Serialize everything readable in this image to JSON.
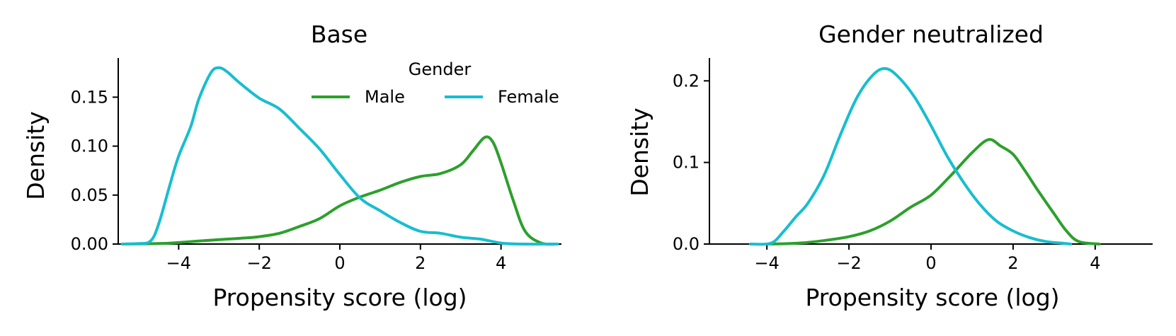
{
  "chart_data": [
    {
      "type": "line",
      "title": "Base",
      "xlabel": "Propensity score (log)",
      "ylabel": "Density",
      "xlim": [
        -5.5,
        5.5
      ],
      "ylim": [
        0,
        0.19
      ],
      "xticks": [
        -4,
        -2,
        0,
        2,
        4
      ],
      "xtick_labels": [
        "−4",
        "−2",
        "0",
        "2",
        "4"
      ],
      "yticks": [
        0,
        0.05,
        0.1,
        0.15
      ],
      "ytick_labels": [
        "0.00",
        "0.05",
        "0.10",
        "0.15"
      ],
      "legend": {
        "title": "Gender",
        "placement": "top-right",
        "entries": [
          "Male",
          "Female"
        ]
      },
      "series": [
        {
          "name": "Male",
          "color": "#2ca02c",
          "x": [
            -5.4,
            -4.5,
            -4,
            -3.5,
            -3,
            -2.5,
            -2,
            -1.5,
            -1,
            -0.5,
            0,
            0.5,
            1,
            1.5,
            2,
            2.5,
            3,
            3.3,
            3.6,
            3.8,
            4,
            4.3,
            4.6,
            5,
            5.4
          ],
          "y": [
            0,
            0.0005,
            0.0015,
            0.003,
            0.0045,
            0.0058,
            0.0075,
            0.011,
            0.018,
            0.026,
            0.039,
            0.048,
            0.055,
            0.063,
            0.069,
            0.072,
            0.081,
            0.095,
            0.109,
            0.104,
            0.083,
            0.045,
            0.013,
            0.001,
            0
          ]
        },
        {
          "name": "Female",
          "color": "#17becf",
          "x": [
            -5.4,
            -5,
            -4.7,
            -4.5,
            -4.2,
            -4,
            -3.7,
            -3.5,
            -3.2,
            -3,
            -2.8,
            -2.5,
            -2,
            -1.5,
            -1,
            -0.5,
            0,
            0.5,
            1,
            1.5,
            2,
            2.5,
            3,
            3.5,
            4,
            4.5,
            5.4
          ],
          "y": [
            0,
            0.0005,
            0.003,
            0.02,
            0.063,
            0.09,
            0.12,
            0.148,
            0.175,
            0.18,
            0.176,
            0.165,
            0.149,
            0.138,
            0.118,
            0.097,
            0.071,
            0.047,
            0.034,
            0.022,
            0.013,
            0.011,
            0.007,
            0.005,
            0.001,
            0,
            0
          ]
        }
      ]
    },
    {
      "type": "line",
      "title": "Gender neutralized",
      "xlabel": "Propensity score (log)",
      "ylabel": "Density",
      "xlim": [
        -5.4,
        5.4
      ],
      "ylim": [
        0,
        0.228
      ],
      "xticks": [
        -4,
        -2,
        0,
        2,
        4
      ],
      "xtick_labels": [
        "−4",
        "−2",
        "0",
        "2",
        "4"
      ],
      "yticks": [
        0,
        0.1,
        0.2
      ],
      "ytick_labels": [
        "0.0",
        "0.1",
        "0.2"
      ],
      "series": [
        {
          "name": "Male",
          "color": "#2ca02c",
          "x": [
            -4,
            -3.5,
            -3,
            -2.5,
            -2,
            -1.5,
            -1,
            -0.5,
            0,
            0.5,
            1,
            1.4,
            1.7,
            2,
            2.3,
            2.6,
            3,
            3.3,
            3.6,
            4.1
          ],
          "y": [
            0,
            0.0005,
            0.002,
            0.005,
            0.009,
            0.016,
            0.028,
            0.045,
            0.06,
            0.085,
            0.112,
            0.128,
            0.12,
            0.11,
            0.089,
            0.066,
            0.037,
            0.016,
            0.003,
            0
          ]
        },
        {
          "name": "Female",
          "color": "#17becf",
          "x": [
            -4.4,
            -3.9,
            -3.6,
            -3.3,
            -3,
            -2.6,
            -2.2,
            -1.8,
            -1.4,
            -1.1,
            -0.8,
            -0.4,
            0,
            0.4,
            0.8,
            1.2,
            1.6,
            2,
            2.4,
            2.8,
            3.2,
            3.4
          ],
          "y": [
            0,
            0.001,
            0.015,
            0.033,
            0.05,
            0.085,
            0.135,
            0.18,
            0.208,
            0.215,
            0.205,
            0.18,
            0.145,
            0.107,
            0.075,
            0.048,
            0.028,
            0.016,
            0.008,
            0.003,
            0.001,
            0
          ]
        }
      ]
    }
  ]
}
